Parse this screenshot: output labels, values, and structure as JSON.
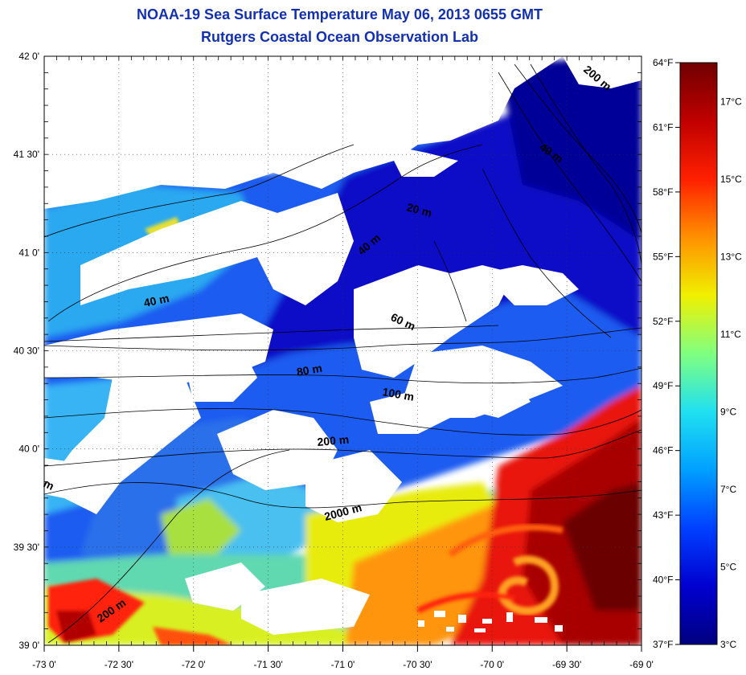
{
  "title": "NOAA-19 Sea Surface Temperature May 06, 2013 0655 GMT",
  "subtitle": "Rutgers Coastal Ocean Observation Lab",
  "map": {
    "lon_range": [
      -73.0,
      -69.0
    ],
    "lat_range": [
      39.0,
      42.0
    ],
    "lon_ticks": [
      -73.0,
      -72.5,
      -72.0,
      -71.5,
      -71.0,
      -70.5,
      -70.0,
      -69.5,
      -69.0
    ],
    "lat_ticks": [
      39.0,
      39.5,
      40.0,
      40.5,
      41.0,
      41.5,
      42.0
    ],
    "lon_labels": [
      "-73 0'",
      "-72 30'",
      "-72 0'",
      "-71 30'",
      "-71 0'",
      "-70 30'",
      "-70 0'",
      "-69 30'",
      "-69 0'"
    ],
    "lat_labels": [
      "39 0'",
      "39 30'",
      "40 0'",
      "40 30'",
      "41 0'",
      "41 30'",
      "42 0'"
    ],
    "grid": "dotted",
    "land_color": "#ffffff",
    "cloud_color": "#ffffff"
  },
  "fahrenheit_labels": [
    "64°F",
    "61°F",
    "58°F",
    "55°F",
    "52°F",
    "49°F",
    "46°F",
    "43°F",
    "40°F",
    "37°F"
  ],
  "colorbar": {
    "range_c": [
      3,
      18
    ],
    "labels": [
      "17°C",
      "15°C",
      "13°C",
      "11°C",
      "9°C",
      "7°C",
      "5°C",
      "3°C"
    ],
    "label_values": [
      17,
      15,
      13,
      11,
      9,
      7,
      5,
      3
    ],
    "colors": [
      "#000080",
      "#0000d0",
      "#0040ff",
      "#00a0ff",
      "#20e0f0",
      "#80ff80",
      "#f0f000",
      "#ff9000",
      "#ff2000",
      "#c00000",
      "#700000"
    ]
  },
  "isobaths": {
    "label_20": "20 m",
    "label_40a": "40 m",
    "label_40b": "40 m",
    "label_40c": "40 m",
    "label_60": "60 m",
    "label_80": "80 m",
    "label_100": "100 m",
    "label_200a": "200 m",
    "label_200b": "200 m",
    "label_200c": "200 m",
    "label_2000": "2000 m",
    "label_edge": "m"
  }
}
